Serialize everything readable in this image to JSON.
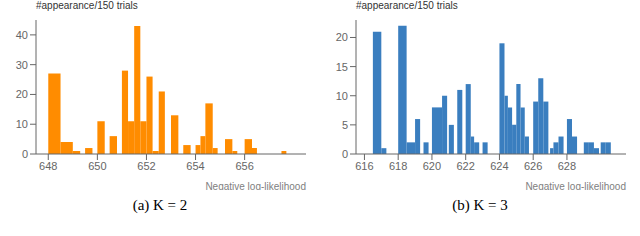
{
  "chart_data": [
    {
      "type": "bar",
      "title": "#appearance/150 trials",
      "x_label": "Negative log-likelihood",
      "subtitle": "(a) K = 2",
      "color": "#ff8c00",
      "grid": false,
      "x0": [
        648.0,
        648.5,
        649.0,
        649.5,
        650.0,
        650.5,
        651.0,
        651.25,
        651.5,
        651.75,
        652.0,
        652.25,
        652.5,
        653.0,
        653.5,
        654.0,
        654.2,
        654.4,
        654.7,
        655.2,
        655.5,
        656.0,
        656.3,
        657.5
      ],
      "x1": [
        648.5,
        649.0,
        649.3,
        649.8,
        650.3,
        650.8,
        651.25,
        651.5,
        651.75,
        652.0,
        652.25,
        652.5,
        652.75,
        653.3,
        653.8,
        654.2,
        654.4,
        654.7,
        654.9,
        655.5,
        655.7,
        656.3,
        656.5,
        657.7
      ],
      "values": [
        27,
        4,
        1,
        2,
        11,
        6,
        28,
        11,
        43,
        11,
        26,
        1,
        21,
        13,
        3,
        3,
        6,
        17,
        2,
        5,
        1,
        5,
        2,
        1
      ],
      "xlim": [
        647.5,
        658.5
      ],
      "ylim": [
        0,
        45
      ],
      "xticks": [
        648,
        650,
        652,
        654,
        656
      ],
      "yticks": [
        0,
        10,
        20,
        30,
        40
      ]
    },
    {
      "type": "bar",
      "title": "#appearance/150 trials",
      "x_label": "Negative log-likelihood",
      "subtitle": "(b) K = 3",
      "color": "#3a7ebf",
      "grid": false,
      "x0": [
        616.5,
        617.0,
        618.0,
        618.5,
        619.0,
        619.5,
        620.0,
        620.3,
        620.6,
        621.0,
        621.5,
        622.0,
        622.3,
        622.5,
        623.0,
        624.0,
        624.3,
        624.5,
        624.75,
        625.0,
        625.25,
        625.5,
        626.0,
        626.3,
        626.6,
        627.0,
        627.2,
        627.5,
        628.0,
        628.3,
        629.0,
        629.3,
        629.6,
        630.0,
        630.3
      ],
      "x1": [
        617.0,
        617.3,
        618.5,
        619.0,
        619.3,
        619.8,
        620.3,
        620.6,
        620.9,
        621.3,
        621.8,
        622.3,
        622.5,
        622.8,
        623.3,
        624.3,
        624.5,
        624.75,
        625.0,
        625.25,
        625.5,
        625.75,
        626.3,
        626.6,
        626.9,
        627.2,
        627.5,
        627.8,
        628.3,
        628.6,
        629.3,
        629.6,
        629.9,
        630.3,
        630.6
      ],
      "values": [
        21,
        1,
        22,
        2,
        6,
        2,
        8,
        8,
        10,
        5,
        11,
        12,
        3,
        2,
        2,
        19,
        10,
        8,
        5,
        12,
        8,
        3,
        9,
        13,
        9,
        1,
        2,
        3,
        6,
        3,
        2,
        2,
        1,
        2,
        2
      ],
      "xlim": [
        615.5,
        631.5
      ],
      "ylim": [
        0,
        23
      ],
      "xticks": [
        616,
        618,
        620,
        622,
        624,
        626,
        628
      ],
      "yticks": [
        0,
        5,
        10,
        15,
        20
      ]
    }
  ]
}
